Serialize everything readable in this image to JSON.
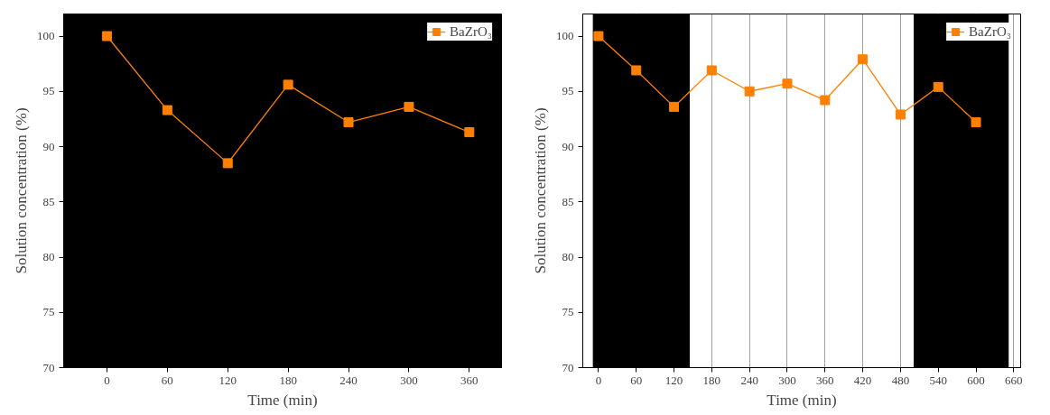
{
  "chart_data": [
    {
      "type": "line",
      "xlabel": "Time (min)",
      "ylabel": "Solution concentration (%)",
      "x": [
        0,
        60,
        120,
        180,
        240,
        300,
        360
      ],
      "xlim": [
        -43,
        392
      ],
      "xticks": [
        0,
        60,
        120,
        180,
        240,
        300,
        360
      ],
      "ylim": [
        70,
        102
      ],
      "yticks": [
        70,
        75,
        80,
        85,
        90,
        95,
        100
      ],
      "marker": "square",
      "legend": "top right",
      "series": [
        {
          "name": "BaZrO₃",
          "color": "#ff8000",
          "values": [
            100,
            93.3,
            88.5,
            95.6,
            92.2,
            93.6,
            91.3
          ]
        }
      ],
      "bands": [
        {
          "axis": "x",
          "from": -43,
          "to": 392,
          "color": "#000000"
        }
      ]
    },
    {
      "type": "line",
      "xlabel": "Time (min)",
      "ylabel": "Solution concentration (%)",
      "x": [
        0,
        60,
        120,
        180,
        240,
        300,
        360,
        420,
        480,
        540,
        600
      ],
      "xlim": [
        -25,
        671
      ],
      "xticks": [
        0,
        60,
        120,
        180,
        240,
        300,
        360,
        420,
        480,
        540,
        600,
        660
      ],
      "ylim": [
        70,
        102
      ],
      "yticks": [
        70,
        75,
        80,
        85,
        90,
        95,
        100
      ],
      "marker": "square",
      "legend": "top right",
      "grid": "x",
      "series": [
        {
          "name": "BaZrO₃",
          "color": "#ff8000",
          "values": [
            100,
            96.9,
            93.6,
            96.9,
            95.0,
            95.7,
            94.2,
            97.9,
            92.9,
            95.4,
            92.2
          ]
        }
      ],
      "bands": [
        {
          "axis": "x",
          "from": -9,
          "to": 145,
          "color": "#000000"
        },
        {
          "axis": "x",
          "from": 501,
          "to": 652,
          "color": "#000000"
        }
      ]
    }
  ]
}
